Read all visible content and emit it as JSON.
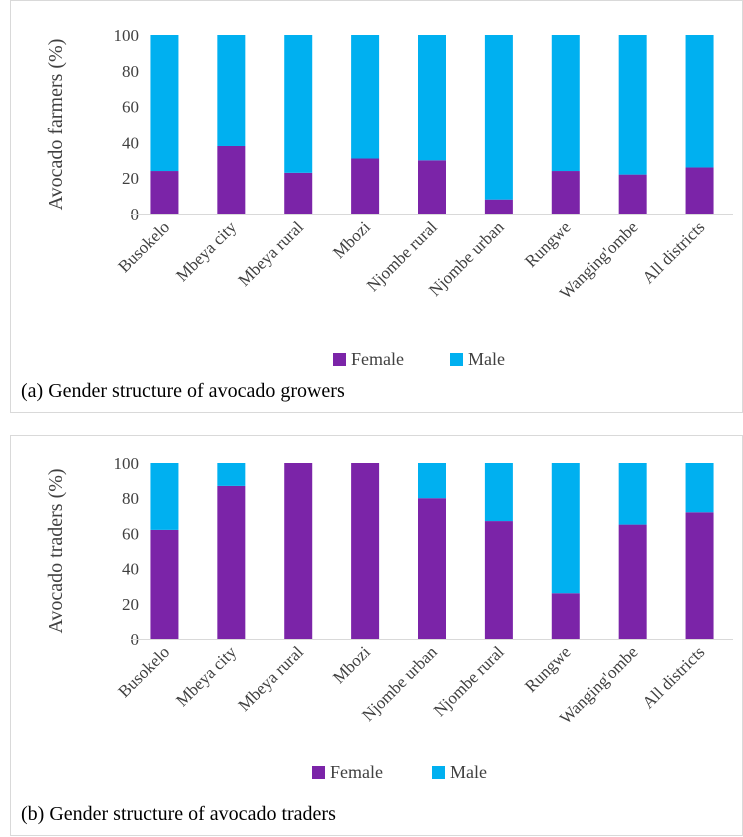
{
  "colors": {
    "female": "#7B24A8",
    "male": "#00B0F0"
  },
  "chart_data": [
    {
      "type": "bar",
      "stacked": true,
      "caption": "(a) Gender structure of avocado growers",
      "ylabel": "Avocado farmers (%)",
      "xlabel": "",
      "ylim": [
        0,
        100
      ],
      "yticks": [
        0,
        20,
        40,
        60,
        80,
        100
      ],
      "legend_position": "bottom",
      "grid": false,
      "categories": [
        "Busokelo",
        "Mbeya city",
        "Mbeya rural",
        "Mbozi",
        "Njombe rural",
        "Njombe urban",
        "Rungwe",
        "Wanging'ombe",
        "All districts"
      ],
      "series": [
        {
          "name": "Female",
          "values": [
            24,
            38,
            23,
            31,
            30,
            8,
            24,
            22,
            26
          ]
        },
        {
          "name": "Male",
          "values": [
            76,
            62,
            77,
            69,
            70,
            92,
            76,
            78,
            74
          ]
        }
      ]
    },
    {
      "type": "bar",
      "stacked": true,
      "caption": "(b) Gender structure of avocado traders",
      "ylabel": "Avocado traders (%)",
      "xlabel": "",
      "ylim": [
        0,
        100
      ],
      "yticks": [
        0,
        20,
        40,
        60,
        80,
        100
      ],
      "legend_position": "bottom",
      "grid": false,
      "categories": [
        "Busokelo",
        "Mbeya city",
        "Mbeya rural",
        "Mbozi",
        "Njombe urban",
        "Njombe rural",
        "Rungwe",
        "Wanging'ombe",
        "All districts"
      ],
      "series": [
        {
          "name": "Female",
          "values": [
            62,
            87,
            100,
            100,
            80,
            67,
            26,
            65,
            72
          ]
        },
        {
          "name": "Male",
          "values": [
            38,
            13,
            0,
            0,
            20,
            33,
            74,
            35,
            28
          ]
        }
      ]
    }
  ]
}
